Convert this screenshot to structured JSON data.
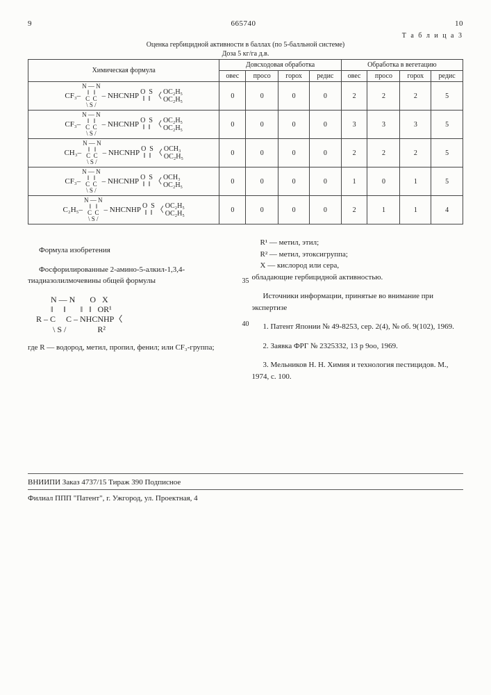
{
  "header": {
    "left_page": "9",
    "patent_no": "665740",
    "right_page": "10"
  },
  "table": {
    "table_label": "Т а б л и ц а  3",
    "caption_line1": "Оценка гербицидной активности в баллах (по 5‑балльной системе)",
    "caption_line2": "Доза 5 кг/га д.в.",
    "col_formula": "Химическая формула",
    "col_group1": "Довсходовая обработка",
    "col_group2": "Обработка в вегетацию",
    "sub_cols": [
      "овес",
      "просо",
      "горох",
      "редис",
      "овес",
      "просо",
      "горох",
      "редис"
    ],
    "rows": [
      {
        "prefix": "CF₃–",
        "tail1": "OC₂H₅",
        "tail2": "OC₂H₅",
        "vals": [
          "0",
          "0",
          "0",
          "0",
          "2",
          "2",
          "2",
          "5"
        ]
      },
      {
        "prefix": "CF₃–",
        "tail1": "OC₂H₅",
        "tail2": "OC₂H₅",
        "vals": [
          "0",
          "0",
          "0",
          "0",
          "3",
          "3",
          "3",
          "5"
        ]
      },
      {
        "prefix": "CH₃–",
        "tail1": "OCH₃",
        "tail2": "OC₂H₅",
        "vals": [
          "0",
          "0",
          "0",
          "0",
          "2",
          "2",
          "2",
          "5"
        ]
      },
      {
        "prefix": "CF₃–",
        "tail1": "OCH₃",
        "tail2": "OC₂H₅",
        "vals": [
          "0",
          "0",
          "0",
          "0",
          "1",
          "0",
          "1",
          "5"
        ]
      },
      {
        "prefix": "C₂H₅–",
        "tail1": "OC₂H₅",
        "tail2": "OC₂H₅",
        "vals": [
          "0",
          "0",
          "0",
          "0",
          "2",
          "1",
          "1",
          "4"
        ]
      }
    ]
  },
  "claims": {
    "left": {
      "title": "Формула изобретения",
      "p1": "Фосфорилированные 2-амино-5-алкил-1,3,4-тиадиазолилмочевины общей формулы",
      "formula_line1": "       N — N       O   X",
      "formula_line2": "       ‖     ‖       ‖   ‖   OR¹",
      "formula_line3": "R – C     C – NHCNHP〈",
      "formula_line4": "        \\ S /               R²",
      "p2": "где R — водород, метил, пропил, фенил; или CF₃-группа;"
    },
    "right": {
      "l1": "R¹ — метил, этил;",
      "l2": "R² — метил, этоксигруппа;",
      "l3": "X — кислород или сера,",
      "l4": "обладающие гербицидной активностью.",
      "src_title": "Источники информации, принятые во внимание при экспертизе",
      "s1": "1. Патент Японии № 49-8253, сер. 2(4), № об. 9(102), 1969.",
      "s2": "2. Заявка ФРГ № 2325332, 13 p 9оо, 1969.",
      "s3": "3. Мельников Н. Н. Химия и технология пестицидов. М., 1974, с. 100."
    },
    "margin35": "35",
    "margin40": "40"
  },
  "footer": {
    "line1": "ВНИИПИ   Заказ 4737/15   Тираж 390   Подписное",
    "line2": "Филиал ППП \"Патент\", г. Ужгород, ул. Проектная, 4"
  }
}
